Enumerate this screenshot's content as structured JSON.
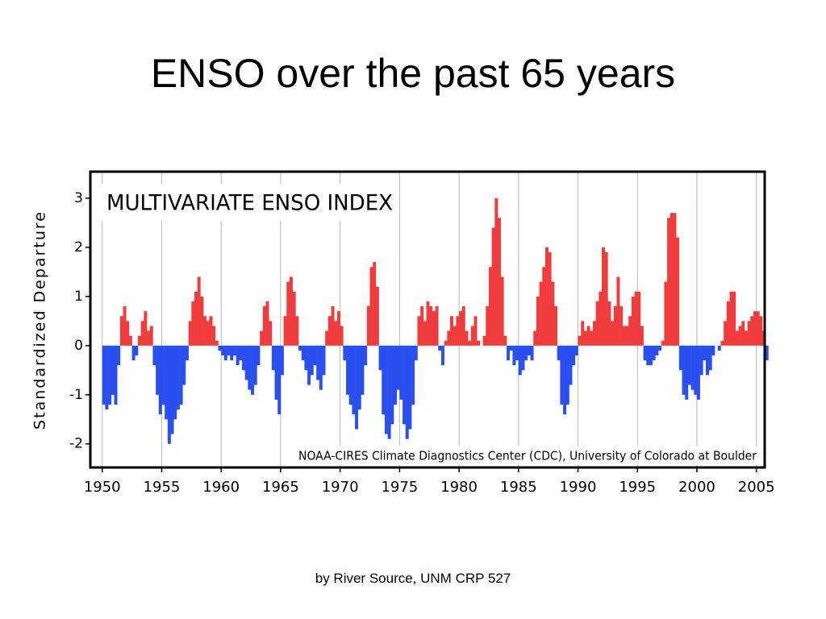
{
  "title": "ENSO over the past 65 years",
  "footer": "by River Source, UNM CRP 527",
  "chart_data": {
    "type": "bar",
    "title": "MULTIVARIATE ENSO INDEX",
    "ylabel": "Standardized Departure",
    "annotation": "NOAA-CIRES Climate Diagnostics Center (CDC), University of Colorado at Boulder",
    "positive_color": "#f03c3c",
    "negative_color": "#2a4ff0",
    "xlim": [
      1949,
      2005.7
    ],
    "ylim": [
      -2.48,
      3.54
    ],
    "xticks": [
      1950,
      1955,
      1960,
      1965,
      1970,
      1975,
      1980,
      1985,
      1990,
      1995,
      2000,
      2005
    ],
    "yticks": [
      -2,
      -1,
      0,
      1,
      2,
      3
    ],
    "grid": true,
    "x": [
      1950,
      1950.25,
      1950.5,
      1950.75,
      1951,
      1951.25,
      1951.5,
      1951.75,
      1952,
      1952.25,
      1952.5,
      1952.75,
      1953,
      1953.25,
      1953.5,
      1953.75,
      1954,
      1954.25,
      1954.5,
      1954.75,
      1955,
      1955.25,
      1955.5,
      1955.75,
      1956,
      1956.25,
      1956.5,
      1956.75,
      1957,
      1957.25,
      1957.5,
      1957.75,
      1958,
      1958.25,
      1958.5,
      1958.75,
      1959,
      1959.25,
      1959.5,
      1959.75,
      1960,
      1960.25,
      1960.5,
      1960.75,
      1961,
      1961.25,
      1961.5,
      1961.75,
      1962,
      1962.25,
      1962.5,
      1962.75,
      1963,
      1963.25,
      1963.5,
      1963.75,
      1964,
      1964.25,
      1964.5,
      1964.75,
      1965,
      1965.25,
      1965.5,
      1965.75,
      1966,
      1966.25,
      1966.5,
      1966.75,
      1967,
      1967.25,
      1967.5,
      1967.75,
      1968,
      1968.25,
      1968.5,
      1968.75,
      1969,
      1969.25,
      1969.5,
      1969.75,
      1970,
      1970.25,
      1970.5,
      1970.75,
      1971,
      1971.25,
      1971.5,
      1971.75,
      1972,
      1972.25,
      1972.5,
      1972.75,
      1973,
      1973.25,
      1973.5,
      1973.75,
      1974,
      1974.25,
      1974.5,
      1974.75,
      1975,
      1975.25,
      1975.5,
      1975.75,
      1976,
      1976.25,
      1976.5,
      1976.75,
      1977,
      1977.25,
      1977.5,
      1977.75,
      1978,
      1978.25,
      1978.5,
      1978.75,
      1979,
      1979.25,
      1979.5,
      1979.75,
      1980,
      1980.25,
      1980.5,
      1980.75,
      1981,
      1981.25,
      1981.5,
      1981.75,
      1982,
      1982.25,
      1982.5,
      1982.75,
      1983,
      1983.25,
      1983.5,
      1983.75,
      1984,
      1984.25,
      1984.5,
      1984.75,
      1985,
      1985.25,
      1985.5,
      1985.75,
      1986,
      1986.25,
      1986.5,
      1986.75,
      1987,
      1987.25,
      1987.5,
      1987.75,
      1988,
      1988.25,
      1988.5,
      1988.75,
      1989,
      1989.25,
      1989.5,
      1989.75,
      1990,
      1990.25,
      1990.5,
      1990.75,
      1991,
      1991.25,
      1991.5,
      1991.75,
      1992,
      1992.25,
      1992.5,
      1992.75,
      1993,
      1993.25,
      1993.5,
      1993.75,
      1994,
      1994.25,
      1994.5,
      1994.75,
      1995,
      1995.25,
      1995.5,
      1995.75,
      1996,
      1996.25,
      1996.5,
      1996.75,
      1997,
      1997.25,
      1997.5,
      1997.75,
      1998,
      1998.25,
      1998.5,
      1998.75,
      1999,
      1999.25,
      1999.5,
      1999.75,
      2000,
      2000.25,
      2000.5,
      2000.75,
      2001,
      2001.25,
      2001.5,
      2001.75,
      2002,
      2002.25,
      2002.5,
      2002.75,
      2003,
      2003.25,
      2003.5,
      2003.75,
      2004,
      2004.25,
      2004.5,
      2004.75,
      2005,
      2005.25,
      2005.5,
      2005.75
    ],
    "values": [
      -1.2,
      -1.3,
      -1.2,
      -1.0,
      -1.2,
      -0.4,
      0.6,
      0.8,
      0.5,
      0.2,
      -0.3,
      -0.2,
      0.2,
      0.5,
      0.7,
      0.3,
      0.4,
      -0.4,
      -1.0,
      -1.4,
      -1.2,
      -1.5,
      -2.0,
      -1.8,
      -1.5,
      -1.3,
      -1.2,
      -0.8,
      -0.3,
      0.5,
      0.9,
      1.1,
      1.4,
      1.0,
      0.6,
      0.5,
      0.6,
      0.4,
      0.1,
      -0.1,
      -0.2,
      -0.3,
      -0.2,
      -0.3,
      -0.2,
      -0.4,
      -0.3,
      -0.5,
      -0.7,
      -0.9,
      -1.0,
      -0.8,
      -0.4,
      0.3,
      0.8,
      0.9,
      0.5,
      -0.5,
      -1.1,
      -1.4,
      -0.6,
      0.6,
      1.3,
      1.4,
      1.1,
      0.6,
      -0.1,
      -0.3,
      -0.5,
      -0.8,
      -0.6,
      -0.4,
      -0.7,
      -0.9,
      -0.6,
      0.3,
      0.6,
      0.8,
      0.5,
      0.7,
      0.4,
      -0.3,
      -1.0,
      -1.2,
      -1.4,
      -1.7,
      -1.3,
      -1.0,
      -0.4,
      0.8,
      1.6,
      1.7,
      1.2,
      -0.5,
      -1.4,
      -1.8,
      -1.9,
      -1.6,
      -1.2,
      -0.9,
      -1.1,
      -1.6,
      -1.9,
      -1.7,
      -1.2,
      -0.3,
      0.6,
      0.8,
      0.5,
      0.9,
      0.8,
      0.7,
      0.8,
      -0.1,
      -0.4,
      0.1,
      0.3,
      0.6,
      0.4,
      0.6,
      0.7,
      0.8,
      0.3,
      0.1,
      0.4,
      0.6,
      0.1,
      0.0,
      0.2,
      0.8,
      1.6,
      2.4,
      3.0,
      2.6,
      1.4,
      0.2,
      -0.3,
      -0.1,
      -0.4,
      -0.3,
      -0.6,
      -0.5,
      -0.3,
      -0.2,
      -0.3,
      0.3,
      1.0,
      1.3,
      1.6,
      2.0,
      1.9,
      1.3,
      0.8,
      -0.3,
      -1.2,
      -1.4,
      -1.2,
      -0.8,
      -0.4,
      -0.2,
      0.2,
      0.5,
      0.3,
      0.4,
      0.3,
      0.5,
      0.9,
      1.1,
      2.0,
      1.9,
      0.9,
      0.5,
      0.8,
      1.4,
      0.8,
      0.4,
      0.4,
      0.6,
      1.0,
      1.1,
      1.1,
      0.4,
      -0.3,
      -0.4,
      -0.4,
      -0.3,
      -0.2,
      -0.1,
      0.1,
      1.3,
      2.6,
      2.7,
      2.7,
      2.2,
      -0.5,
      -1.0,
      -1.1,
      -0.8,
      -0.9,
      -1.0,
      -1.1,
      -0.6,
      -0.3,
      -0.6,
      -0.5,
      -0.2,
      0.0,
      -0.1,
      0.1,
      0.5,
      0.9,
      1.1,
      1.1,
      0.3,
      0.4,
      0.5,
      0.3,
      0.5,
      0.6,
      0.7,
      0.7,
      0.6,
      0.3,
      -0.3
    ]
  }
}
